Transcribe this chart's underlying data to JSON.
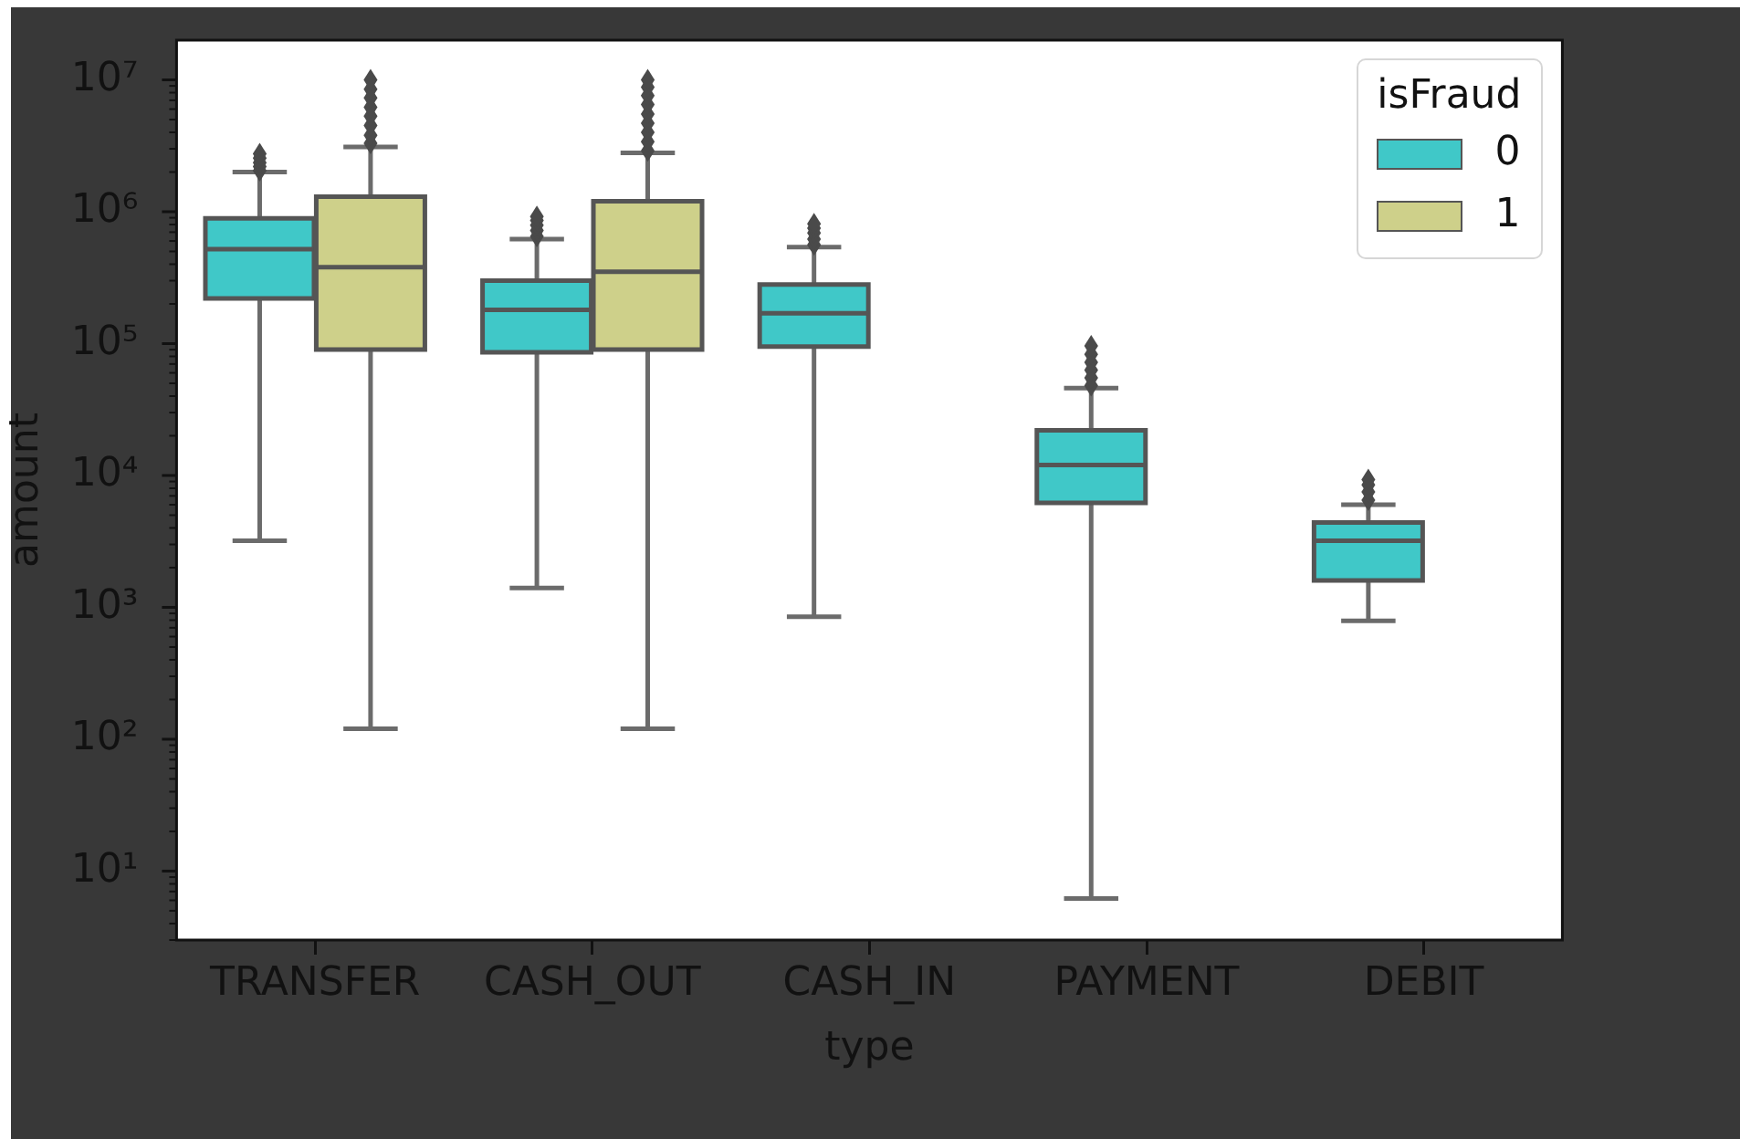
{
  "chart_data": {
    "type": "box",
    "categories": [
      "TRANSFER",
      "CASH_OUT",
      "CASH_IN",
      "PAYMENT",
      "DEBIT"
    ],
    "xlabel": "type",
    "ylabel": "amount",
    "legend_title": "isFraud",
    "legend": "top right",
    "log": true,
    "marker": "diamond",
    "ylim": [
      3,
      20000000
    ],
    "yticks": [
      {
        "value": 3,
        "label": null
      },
      {
        "value": 4,
        "label": null
      },
      {
        "value": 5,
        "label": null
      },
      {
        "value": 6,
        "label": null
      },
      {
        "value": 7,
        "label": null
      },
      {
        "value": 8,
        "label": null
      },
      {
        "value": 9,
        "label": null
      },
      {
        "value": 10,
        "label": "10¹"
      },
      {
        "value": 20,
        "label": null
      },
      {
        "value": 30,
        "label": null
      },
      {
        "value": 40,
        "label": null
      },
      {
        "value": 50,
        "label": null
      },
      {
        "value": 60,
        "label": null
      },
      {
        "value": 70,
        "label": null
      },
      {
        "value": 80,
        "label": null
      },
      {
        "value": 90,
        "label": null
      },
      {
        "value": 100,
        "label": "10²"
      },
      {
        "value": 200,
        "label": null
      },
      {
        "value": 300,
        "label": null
      },
      {
        "value": 400,
        "label": null
      },
      {
        "value": 500,
        "label": null
      },
      {
        "value": 600,
        "label": null
      },
      {
        "value": 700,
        "label": null
      },
      {
        "value": 800,
        "label": null
      },
      {
        "value": 900,
        "label": null
      },
      {
        "value": 1000,
        "label": "10³"
      },
      {
        "value": 2000,
        "label": null
      },
      {
        "value": 3000,
        "label": null
      },
      {
        "value": 4000,
        "label": null
      },
      {
        "value": 5000,
        "label": null
      },
      {
        "value": 6000,
        "label": null
      },
      {
        "value": 7000,
        "label": null
      },
      {
        "value": 8000,
        "label": null
      },
      {
        "value": 9000,
        "label": null
      },
      {
        "value": 10000,
        "label": "10⁴"
      },
      {
        "value": 20000,
        "label": null
      },
      {
        "value": 30000,
        "label": null
      },
      {
        "value": 40000,
        "label": null
      },
      {
        "value": 50000,
        "label": null
      },
      {
        "value": 60000,
        "label": null
      },
      {
        "value": 70000,
        "label": null
      },
      {
        "value": 80000,
        "label": null
      },
      {
        "value": 90000,
        "label": null
      },
      {
        "value": 100000,
        "label": "10⁵"
      },
      {
        "value": 200000,
        "label": null
      },
      {
        "value": 300000,
        "label": null
      },
      {
        "value": 400000,
        "label": null
      },
      {
        "value": 500000,
        "label": null
      },
      {
        "value": 600000,
        "label": null
      },
      {
        "value": 700000,
        "label": null
      },
      {
        "value": 800000,
        "label": null
      },
      {
        "value": 900000,
        "label": null
      },
      {
        "value": 1000000,
        "label": "10⁶"
      },
      {
        "value": 2000000,
        "label": null
      },
      {
        "value": 3000000,
        "label": null
      },
      {
        "value": 4000000,
        "label": null
      },
      {
        "value": 5000000,
        "label": null
      },
      {
        "value": 6000000,
        "label": null
      },
      {
        "value": 7000000,
        "label": null
      },
      {
        "value": 8000000,
        "label": null
      },
      {
        "value": 9000000,
        "label": null
      },
      {
        "value": 10000000,
        "label": "10⁷"
      }
    ],
    "series": [
      {
        "name": "0",
        "color": "#40c8c8",
        "boxes": [
          {
            "low": 3200,
            "q1": 220000,
            "median": 520000,
            "q3": 890000,
            "high": 2000000,
            "outliers": [
              2050000,
              2200000,
              2350000,
              2550000,
              2750000
            ]
          },
          {
            "low": 1400,
            "q1": 86000,
            "median": 180000,
            "q3": 300000,
            "high": 620000,
            "outliers": [
              650000,
              720000,
              790000,
              860000,
              920000
            ]
          },
          {
            "low": 850,
            "q1": 95000,
            "median": 170000,
            "q3": 280000,
            "high": 540000,
            "outliers": [
              560000,
              620000,
              690000,
              750000,
              810000
            ]
          },
          {
            "low": 6.2,
            "q1": 6200,
            "median": 12000,
            "q3": 22000,
            "high": 46000,
            "outliers": [
              48000,
              55000,
              63000,
              72000,
              83000,
              96000
            ]
          },
          {
            "low": 790,
            "q1": 1600,
            "median": 3200,
            "q3": 4400,
            "high": 6000,
            "outliers": [
              6500,
              7500,
              8500,
              9300
            ]
          }
        ]
      },
      {
        "name": "1",
        "color": "#ced08a",
        "boxes": [
          {
            "low": 120,
            "q1": 90000,
            "median": 380000,
            "q3": 1300000,
            "high": 3100000,
            "outliers": [
              3300000,
              3800000,
              4500000,
              5300000,
              6200000,
              7300000,
              8500000,
              10000000
            ]
          },
          {
            "low": 120,
            "q1": 90000,
            "median": 350000,
            "q3": 1200000,
            "high": 2800000,
            "outliers": [
              2900000,
              3400000,
              4000000,
              4700000,
              5500000,
              6500000,
              7600000,
              8800000,
              10000000
            ]
          },
          null,
          null,
          null
        ]
      }
    ]
  }
}
